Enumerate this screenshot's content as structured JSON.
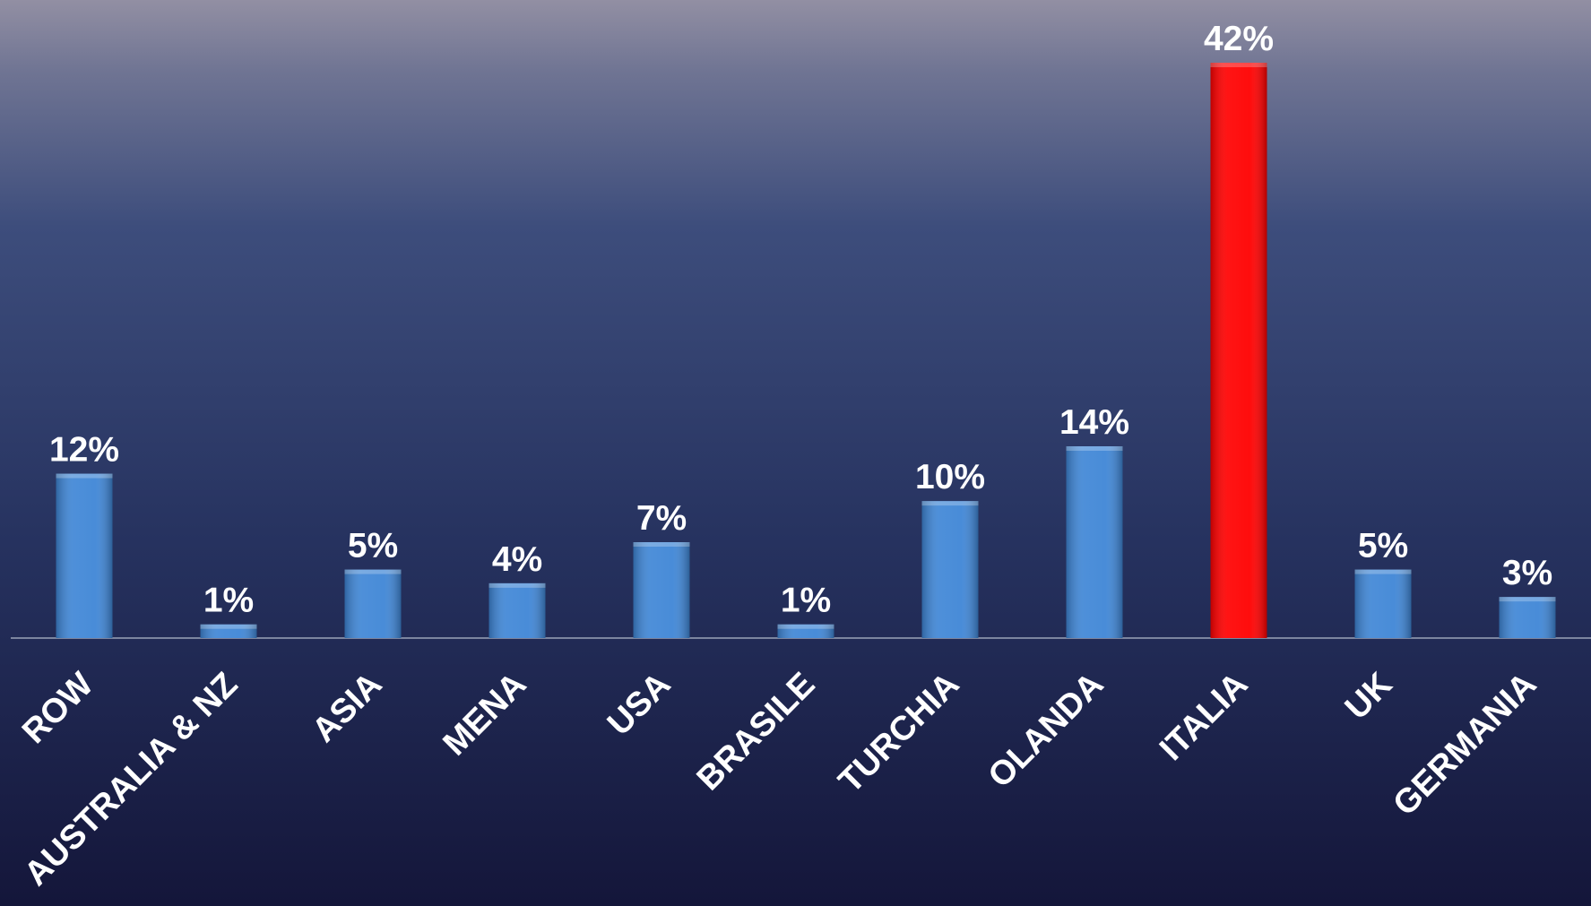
{
  "chart_data": {
    "type": "bar",
    "categories": [
      "ROW",
      "AUSTRALIA & NZ",
      "ASIA",
      "MENA",
      "USA",
      "BRASILE",
      "TURCHIA",
      "OLANDA",
      "ITALIA",
      "UK",
      "GERMANIA"
    ],
    "values": [
      12,
      1,
      5,
      4,
      7,
      1,
      10,
      14,
      42,
      5,
      3
    ],
    "value_labels": [
      "12%",
      "1%",
      "5%",
      "4%",
      "7%",
      "1%",
      "10%",
      "14%",
      "42%",
      "5%",
      "3%"
    ],
    "colors": [
      "#3f86d6",
      "#3f86d6",
      "#3f86d6",
      "#3f86d6",
      "#3f86d6",
      "#3f86d6",
      "#3f86d6",
      "#3f86d6",
      "#ff0000",
      "#3f86d6",
      "#3f86d6"
    ]
  }
}
